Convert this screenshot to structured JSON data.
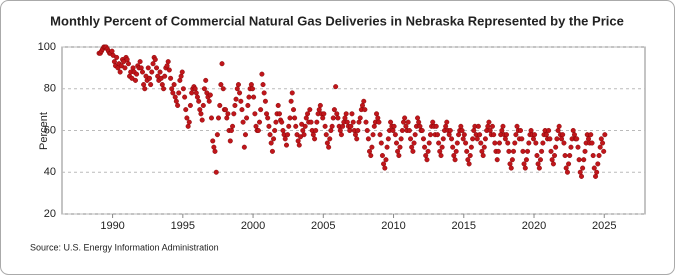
{
  "chart_data": {
    "type": "scatter",
    "title": "Monthly Percent of Commercial Natural Gas Deliveries in Nebraska Represented by the Price",
    "y_label": "Percent",
    "source": "Source: U.S. Energy Information Administration",
    "xlim": [
      1986.4,
      2027.9
    ],
    "ylim": [
      20,
      100
    ],
    "xticks": [
      1990,
      1995,
      2000,
      2005,
      2010,
      2015,
      2020,
      2025
    ],
    "yticks": [
      20,
      40,
      60,
      80,
      100
    ],
    "grid": true,
    "series": [
      {
        "color": "#c0161b",
        "x": [
          1989.04,
          1989.13,
          1989.21,
          1989.29,
          1989.38,
          1989.46,
          1989.54,
          1989.63,
          1989.71,
          1989.79,
          1989.88,
          1989.96,
          1990.04,
          1990.13,
          1990.21,
          1990.29,
          1990.38,
          1990.46,
          1990.54,
          1990.63,
          1990.71,
          1990.79,
          1990.88,
          1990.96,
          1991.04,
          1991.13,
          1991.21,
          1991.29,
          1991.38,
          1991.46,
          1991.54,
          1991.63,
          1991.71,
          1991.79,
          1991.88,
          1991.96,
          1992.04,
          1992.13,
          1992.21,
          1992.29,
          1992.38,
          1992.46,
          1992.54,
          1992.63,
          1992.71,
          1992.79,
          1992.88,
          1992.96,
          1993.04,
          1993.13,
          1993.21,
          1993.29,
          1993.38,
          1993.46,
          1993.54,
          1993.63,
          1993.71,
          1993.79,
          1993.88,
          1993.96,
          1994.04,
          1994.13,
          1994.21,
          1994.29,
          1994.38,
          1994.46,
          1994.54,
          1994.63,
          1994.71,
          1994.79,
          1994.88,
          1994.96,
          1995.04,
          1995.13,
          1995.21,
          1995.29,
          1995.38,
          1995.46,
          1995.54,
          1995.63,
          1995.71,
          1995.79,
          1995.88,
          1995.96,
          1996.04,
          1996.13,
          1996.21,
          1996.29,
          1996.38,
          1996.46,
          1996.54,
          1996.63,
          1996.71,
          1996.79,
          1996.88,
          1996.96,
          1997.04,
          1997.13,
          1997.21,
          1997.29,
          1997.38,
          1997.46,
          1997.54,
          1997.63,
          1997.71,
          1997.79,
          1997.88,
          1997.96,
          1998.04,
          1998.13,
          1998.21,
          1998.29,
          1998.38,
          1998.46,
          1998.54,
          1998.63,
          1998.71,
          1998.79,
          1998.88,
          1998.96,
          1999.04,
          1999.13,
          1999.21,
          1999.29,
          1999.38,
          1999.46,
          1999.54,
          1999.63,
          1999.71,
          1999.79,
          1999.88,
          1999.96,
          2000.04,
          2000.13,
          2000.21,
          2000.29,
          2000.38,
          2000.46,
          2000.54,
          2000.63,
          2000.71,
          2000.79,
          2000.88,
          2000.96,
          2001.04,
          2001.13,
          2001.21,
          2001.29,
          2001.38,
          2001.46,
          2001.54,
          2001.63,
          2001.71,
          2001.79,
          2001.88,
          2001.96,
          2002.04,
          2002.13,
          2002.21,
          2002.29,
          2002.38,
          2002.46,
          2002.54,
          2002.63,
          2002.71,
          2002.79,
          2002.88,
          2002.96,
          2003.04,
          2003.13,
          2003.21,
          2003.29,
          2003.38,
          2003.46,
          2003.54,
          2003.63,
          2003.71,
          2003.79,
          2003.88,
          2003.96,
          2004.04,
          2004.13,
          2004.21,
          2004.29,
          2004.38,
          2004.46,
          2004.54,
          2004.63,
          2004.71,
          2004.79,
          2004.88,
          2004.96,
          2005.04,
          2005.13,
          2005.21,
          2005.29,
          2005.38,
          2005.46,
          2005.54,
          2005.63,
          2005.71,
          2005.79,
          2005.88,
          2005.96,
          2006.04,
          2006.13,
          2006.21,
          2006.29,
          2006.38,
          2006.46,
          2006.54,
          2006.63,
          2006.71,
          2006.79,
          2006.88,
          2006.96,
          2007.04,
          2007.13,
          2007.21,
          2007.29,
          2007.38,
          2007.46,
          2007.54,
          2007.63,
          2007.71,
          2007.79,
          2007.88,
          2007.96,
          2008.04,
          2008.13,
          2008.21,
          2008.29,
          2008.38,
          2008.46,
          2008.54,
          2008.63,
          2008.71,
          2008.79,
          2008.88,
          2008.96,
          2009.04,
          2009.13,
          2009.21,
          2009.29,
          2009.38,
          2009.46,
          2009.54,
          2009.63,
          2009.71,
          2009.79,
          2009.88,
          2009.96,
          2010.04,
          2010.13,
          2010.21,
          2010.29,
          2010.38,
          2010.46,
          2010.54,
          2010.63,
          2010.71,
          2010.79,
          2010.88,
          2010.96,
          2011.04,
          2011.13,
          2011.21,
          2011.29,
          2011.38,
          2011.46,
          2011.54,
          2011.63,
          2011.71,
          2011.79,
          2011.88,
          2011.96,
          2012.04,
          2012.13,
          2012.21,
          2012.29,
          2012.38,
          2012.46,
          2012.54,
          2012.63,
          2012.71,
          2012.79,
          2012.88,
          2012.96,
          2013.04,
          2013.13,
          2013.21,
          2013.29,
          2013.38,
          2013.46,
          2013.54,
          2013.63,
          2013.71,
          2013.79,
          2013.88,
          2013.96,
          2014.04,
          2014.13,
          2014.21,
          2014.29,
          2014.38,
          2014.46,
          2014.54,
          2014.63,
          2014.71,
          2014.79,
          2014.88,
          2014.96,
          2015.04,
          2015.13,
          2015.21,
          2015.29,
          2015.38,
          2015.46,
          2015.54,
          2015.63,
          2015.71,
          2015.79,
          2015.88,
          2015.96,
          2016.04,
          2016.13,
          2016.21,
          2016.29,
          2016.38,
          2016.46,
          2016.54,
          2016.63,
          2016.71,
          2016.79,
          2016.88,
          2016.96,
          2017.04,
          2017.13,
          2017.21,
          2017.29,
          2017.38,
          2017.46,
          2017.54,
          2017.63,
          2017.71,
          2017.79,
          2017.88,
          2017.96,
          2018.04,
          2018.13,
          2018.21,
          2018.29,
          2018.38,
          2018.46,
          2018.54,
          2018.63,
          2018.71,
          2018.79,
          2018.88,
          2018.96,
          2019.04,
          2019.13,
          2019.21,
          2019.29,
          2019.38,
          2019.46,
          2019.54,
          2019.63,
          2019.71,
          2019.79,
          2019.88,
          2019.96,
          2020.04,
          2020.13,
          2020.21,
          2020.29,
          2020.38,
          2020.46,
          2020.54,
          2020.63,
          2020.71,
          2020.79,
          2020.88,
          2020.96,
          2021.04,
          2021.13,
          2021.21,
          2021.29,
          2021.38,
          2021.46,
          2021.54,
          2021.63,
          2021.71,
          2021.79,
          2021.88,
          2021.96,
          2022.04,
          2022.13,
          2022.21,
          2022.29,
          2022.38,
          2022.46,
          2022.54,
          2022.63,
          2022.71,
          2022.79,
          2022.88,
          2022.96,
          2023.04,
          2023.13,
          2023.21,
          2023.29,
          2023.38,
          2023.46,
          2023.54,
          2023.63,
          2023.71,
          2023.79,
          2023.88,
          2023.96,
          2024.04,
          2024.13,
          2024.21,
          2024.29,
          2024.38,
          2024.46,
          2024.54,
          2024.63,
          2024.71,
          2024.79,
          2024.88,
          2024.96,
          2025.04
        ],
        "values": [
          97,
          97,
          98,
          99,
          100,
          100,
          100,
          99,
          98,
          97,
          97,
          98,
          96,
          93,
          91,
          95,
          90,
          92,
          88,
          91,
          94,
          93,
          90,
          95,
          94,
          92,
          86,
          88,
          85,
          90,
          88,
          84,
          87,
          91,
          90,
          93,
          90,
          88,
          82,
          80,
          86,
          84,
          90,
          85,
          82,
          88,
          92,
          95,
          94,
          90,
          86,
          84,
          88,
          85,
          82,
          80,
          86,
          90,
          91,
          93,
          89,
          85,
          80,
          78,
          82,
          76,
          74,
          72,
          78,
          84,
          86,
          88,
          80,
          76,
          70,
          66,
          62,
          64,
          72,
          78,
          80,
          81,
          80,
          78,
          76,
          74,
          70,
          68,
          65,
          72,
          80,
          84,
          78,
          76,
          74,
          77,
          66,
          55,
          52,
          50,
          40,
          58,
          66,
          72,
          82,
          92,
          80,
          70,
          70,
          66,
          68,
          60,
          55,
          60,
          62,
          68,
          72,
          75,
          80,
          82,
          78,
          74,
          70,
          64,
          52,
          58,
          66,
          72,
          76,
          80,
          82,
          80,
          76,
          68,
          62,
          60,
          60,
          64,
          70,
          87,
          82,
          78,
          74,
          68,
          66,
          62,
          58,
          54,
          50,
          56,
          60,
          64,
          68,
          72,
          68,
          65,
          64,
          60,
          58,
          56,
          53,
          58,
          62,
          66,
          74,
          78,
          70,
          66,
          62,
          58,
          55,
          53,
          57,
          63,
          60,
          58,
          62,
          66,
          68,
          64,
          70,
          64,
          60,
          58,
          56,
          60,
          64,
          68,
          70,
          72,
          68,
          66,
          68,
          62,
          58,
          54,
          52,
          56,
          60,
          62,
          66,
          70,
          81,
          68,
          66,
          62,
          60,
          58,
          62,
          64,
          66,
          68,
          64,
          62,
          60,
          62,
          68,
          64,
          60,
          58,
          56,
          60,
          64,
          66,
          70,
          72,
          74,
          70,
          64,
          60,
          56,
          50,
          48,
          52,
          58,
          62,
          64,
          68,
          66,
          64,
          58,
          54,
          48,
          44,
          42,
          46,
          52,
          56,
          60,
          64,
          62,
          60,
          62,
          58,
          54,
          50,
          48,
          52,
          56,
          60,
          64,
          66,
          62,
          60,
          64,
          60,
          56,
          52,
          50,
          54,
          58,
          62,
          66,
          64,
          62,
          60,
          60,
          56,
          52,
          48,
          46,
          50,
          54,
          58,
          62,
          64,
          62,
          58,
          62,
          58,
          54,
          50,
          48,
          52,
          56,
          60,
          62,
          64,
          60,
          58,
          60,
          56,
          52,
          48,
          46,
          50,
          54,
          58,
          60,
          62,
          60,
          56,
          58,
          54,
          50,
          46,
          44,
          48,
          52,
          56,
          60,
          62,
          58,
          56,
          62,
          58,
          54,
          50,
          48,
          52,
          56,
          60,
          62,
          64,
          60,
          58,
          62,
          58,
          54,
          50,
          46,
          50,
          54,
          58,
          60,
          62,
          58,
          56,
          58,
          54,
          50,
          44,
          42,
          46,
          50,
          54,
          58,
          62,
          60,
          56,
          60,
          56,
          50,
          44,
          42,
          46,
          50,
          54,
          58,
          60,
          58,
          56,
          58,
          54,
          48,
          44,
          42,
          46,
          50,
          54,
          58,
          60,
          58,
          56,
          60,
          56,
          50,
          46,
          44,
          48,
          52,
          56,
          60,
          62,
          58,
          56,
          58,
          54,
          48,
          42,
          40,
          44,
          48,
          52,
          56,
          60,
          58,
          56,
          56,
          52,
          46,
          40,
          38,
          42,
          46,
          50,
          54,
          58,
          56,
          54,
          58,
          54,
          48,
          42,
          38,
          40,
          44,
          48,
          52,
          56,
          54,
          50,
          58
        ]
      }
    ]
  }
}
